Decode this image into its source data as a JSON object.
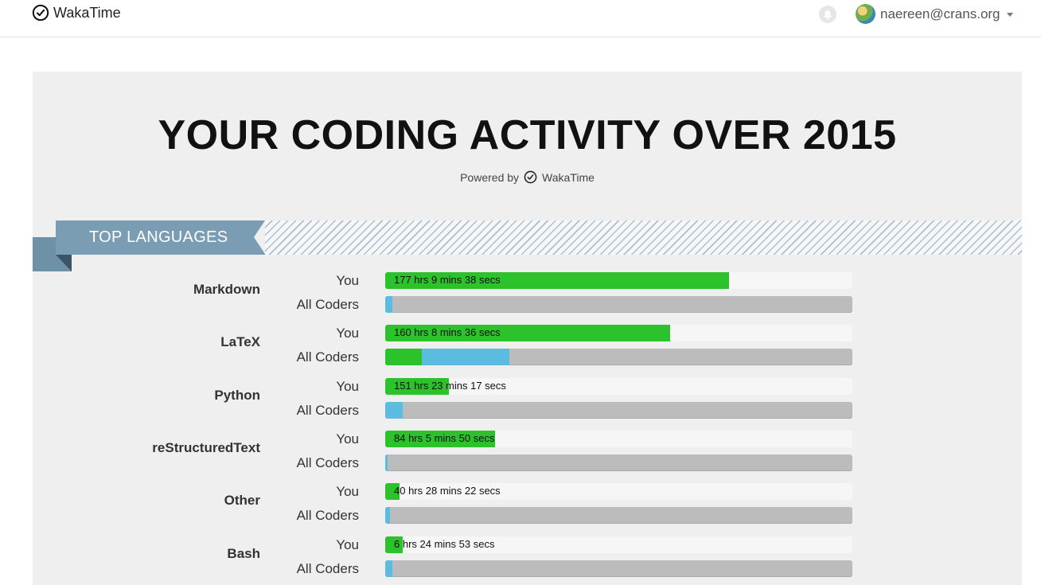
{
  "navbar": {
    "brand": "WakaTime",
    "user_email": "naereen@crans.org",
    "icons": [
      "wakatime-logo-icon",
      "bell-icon",
      "avatar",
      "caret-down-icon"
    ]
  },
  "report": {
    "title": "YOUR CODING ACTIVITY OVER 2015",
    "powered_by": "Powered by",
    "powered_brand": "WakaTime",
    "section_title": "TOP LANGUAGES",
    "you_label": "You",
    "all_label": "All Coders",
    "colors": {
      "you": "#2bc22b",
      "all_coders": "#5cbcdf",
      "track": "#bcbcbc"
    }
  },
  "languages": [
    {
      "name": "Markdown",
      "you_text": "177 hrs 9 mins 38 secs",
      "you_pct": 73.6,
      "all_green_pct": 0,
      "all_blue_pct": 1.5
    },
    {
      "name": "LaTeX",
      "you_text": "160 hrs 8 mins 36 secs",
      "you_pct": 61.0,
      "all_green_pct": 7.8,
      "all_blue_pct": 18.8
    },
    {
      "name": "Python",
      "you_text": "151 hrs 23 mins 17 secs",
      "you_pct": 13.6,
      "all_green_pct": 0,
      "all_blue_pct": 3.7
    },
    {
      "name": "reStructuredText",
      "you_text": "84 hrs 5 mins 50 secs",
      "you_pct": 23.5,
      "all_green_pct": 0,
      "all_blue_pct": 0.5
    },
    {
      "name": "Other",
      "you_text": "40 hrs 28 mins 22 secs",
      "you_pct": 3.1,
      "all_green_pct": 0,
      "all_blue_pct": 1.0
    },
    {
      "name": "Bash",
      "you_text": "6 hrs 24 mins 53 secs",
      "you_pct": 3.7,
      "all_green_pct": 0,
      "all_blue_pct": 1.5
    }
  ]
}
